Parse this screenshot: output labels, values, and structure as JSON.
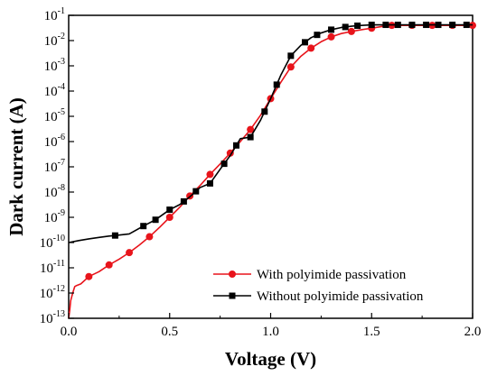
{
  "chart_data": {
    "type": "line",
    "xlabel": "Voltage (V)",
    "ylabel": "Dark current (A)",
    "xlim": [
      0.0,
      2.0
    ],
    "ylim": [
      1e-13,
      0.1
    ],
    "y_scale": "log",
    "x_ticks": [
      "0.0",
      "0.5",
      "1.0",
      "1.5",
      "2.0"
    ],
    "y_tick_exponents": [
      -13,
      -12,
      -11,
      -10,
      -9,
      -8,
      -7,
      -6,
      -5,
      -4,
      -3,
      -2,
      -1
    ],
    "grid": false,
    "legend_position": "bottom-right",
    "series": [
      {
        "name": "With polyimide passivation",
        "color": "#e8141b",
        "marker": "circle",
        "x": [
          0.0,
          0.005,
          0.01,
          0.02,
          0.03,
          0.04,
          0.06,
          0.1,
          0.15,
          0.2,
          0.25,
          0.3,
          0.35,
          0.4,
          0.45,
          0.5,
          0.55,
          0.6,
          0.65,
          0.7,
          0.75,
          0.8,
          0.85,
          0.9,
          0.95,
          1.0,
          1.05,
          1.1,
          1.15,
          1.2,
          1.25,
          1.3,
          1.35,
          1.4,
          1.45,
          1.5,
          1.55,
          1.6,
          1.7,
          1.8,
          1.9,
          2.0
        ],
        "y": [
          1e-13,
          2e-13,
          5e-13,
          1e-12,
          1.8e-12,
          2e-12,
          2.3e-12,
          4.5e-12,
          7e-12,
          1.3e-11,
          2.2e-11,
          4e-11,
          8e-11,
          1.7e-10,
          4e-10,
          1e-09,
          2.5e-09,
          7e-09,
          1.8e-08,
          5e-08,
          1.3e-07,
          3.5e-07,
          1e-06,
          3e-06,
          1.1e-05,
          5e-05,
          0.00022,
          0.0009,
          0.0024,
          0.005,
          0.009,
          0.014,
          0.019,
          0.023,
          0.027,
          0.031,
          0.036,
          0.04,
          0.04,
          0.04,
          0.04,
          0.04
        ],
        "marker_x": [
          0.1,
          0.2,
          0.3,
          0.4,
          0.5,
          0.6,
          0.7,
          0.8,
          0.9,
          1.0,
          1.1,
          1.2,
          1.3,
          1.4,
          1.5,
          1.6,
          1.7,
          1.8,
          1.9,
          2.0
        ]
      },
      {
        "name": "Without polyimide passivation",
        "color": "#000000",
        "marker": "square",
        "x": [
          0.0,
          0.05,
          0.1,
          0.15,
          0.2,
          0.23,
          0.3,
          0.37,
          0.43,
          0.5,
          0.55,
          0.6,
          0.65,
          0.7,
          0.75,
          0.8,
          0.85,
          0.9,
          0.95,
          1.0,
          1.05,
          1.1,
          1.15,
          1.2,
          1.25,
          1.3,
          1.35,
          1.4,
          1.45,
          1.5,
          1.55,
          1.6,
          1.65,
          1.7,
          1.75,
          1.8,
          1.85,
          1.9,
          1.95,
          2.0
        ],
        "y": [
          1e-10,
          1.2e-10,
          1.4e-10,
          1.6e-10,
          1.8e-10,
          1.9e-10,
          2.2e-10,
          4.5e-10,
          8e-10,
          2e-09,
          3.2e-09,
          6.5e-09,
          1.5e-08,
          2.2e-08,
          8e-08,
          2.8e-07,
          1.3e-06,
          1.5e-06,
          7e-06,
          5e-05,
          0.00042,
          0.0025,
          0.0065,
          0.013,
          0.02,
          0.027,
          0.033,
          0.037,
          0.04,
          0.042,
          0.042,
          0.042,
          0.042,
          0.042,
          0.042,
          0.042,
          0.042,
          0.042,
          0.042,
          0.042
        ],
        "marker_x": [
          0.23,
          0.37,
          0.43,
          0.5,
          0.57,
          0.63,
          0.7,
          0.77,
          0.83,
          0.9,
          0.97,
          1.03,
          1.1,
          1.17,
          1.23,
          1.3,
          1.37,
          1.43,
          1.5,
          1.57,
          1.63,
          1.7,
          1.77,
          1.83,
          1.9,
          1.97
        ]
      }
    ]
  }
}
